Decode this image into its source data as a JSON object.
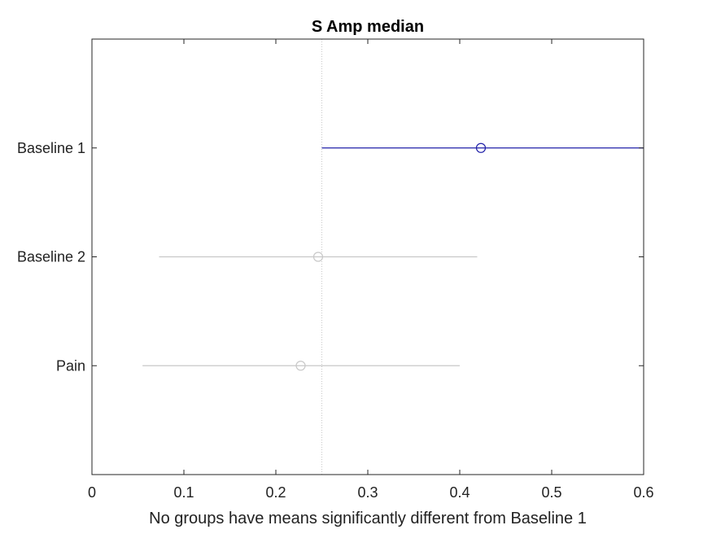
{
  "chart_data": {
    "type": "scatter",
    "title": "S Amp median",
    "xlabel": "No groups have means significantly different from Baseline 1",
    "ylabel": "",
    "xlim": [
      0,
      0.6
    ],
    "x_ticks": [
      0,
      0.1,
      0.2,
      0.3,
      0.4,
      0.5,
      0.6
    ],
    "x_tick_labels": [
      "0",
      "0.1",
      "0.2",
      "0.3",
      "0.4",
      "0.5",
      "0.6"
    ],
    "grid": false,
    "reference_line_x": 0.25,
    "groups": [
      {
        "label": "Baseline 1",
        "mean": 0.423,
        "lower": 0.25,
        "upper": 0.6,
        "highlighted": true
      },
      {
        "label": "Baseline 2",
        "mean": 0.246,
        "lower": 0.073,
        "upper": 0.419,
        "highlighted": false
      },
      {
        "label": "Pain",
        "mean": 0.227,
        "lower": 0.055,
        "upper": 0.4,
        "highlighted": false
      }
    ],
    "colors": {
      "highlight": "#1f1fa8",
      "other": "#c8c8c8",
      "reference_line": "#c8c8c8",
      "axes": "#262626"
    }
  }
}
